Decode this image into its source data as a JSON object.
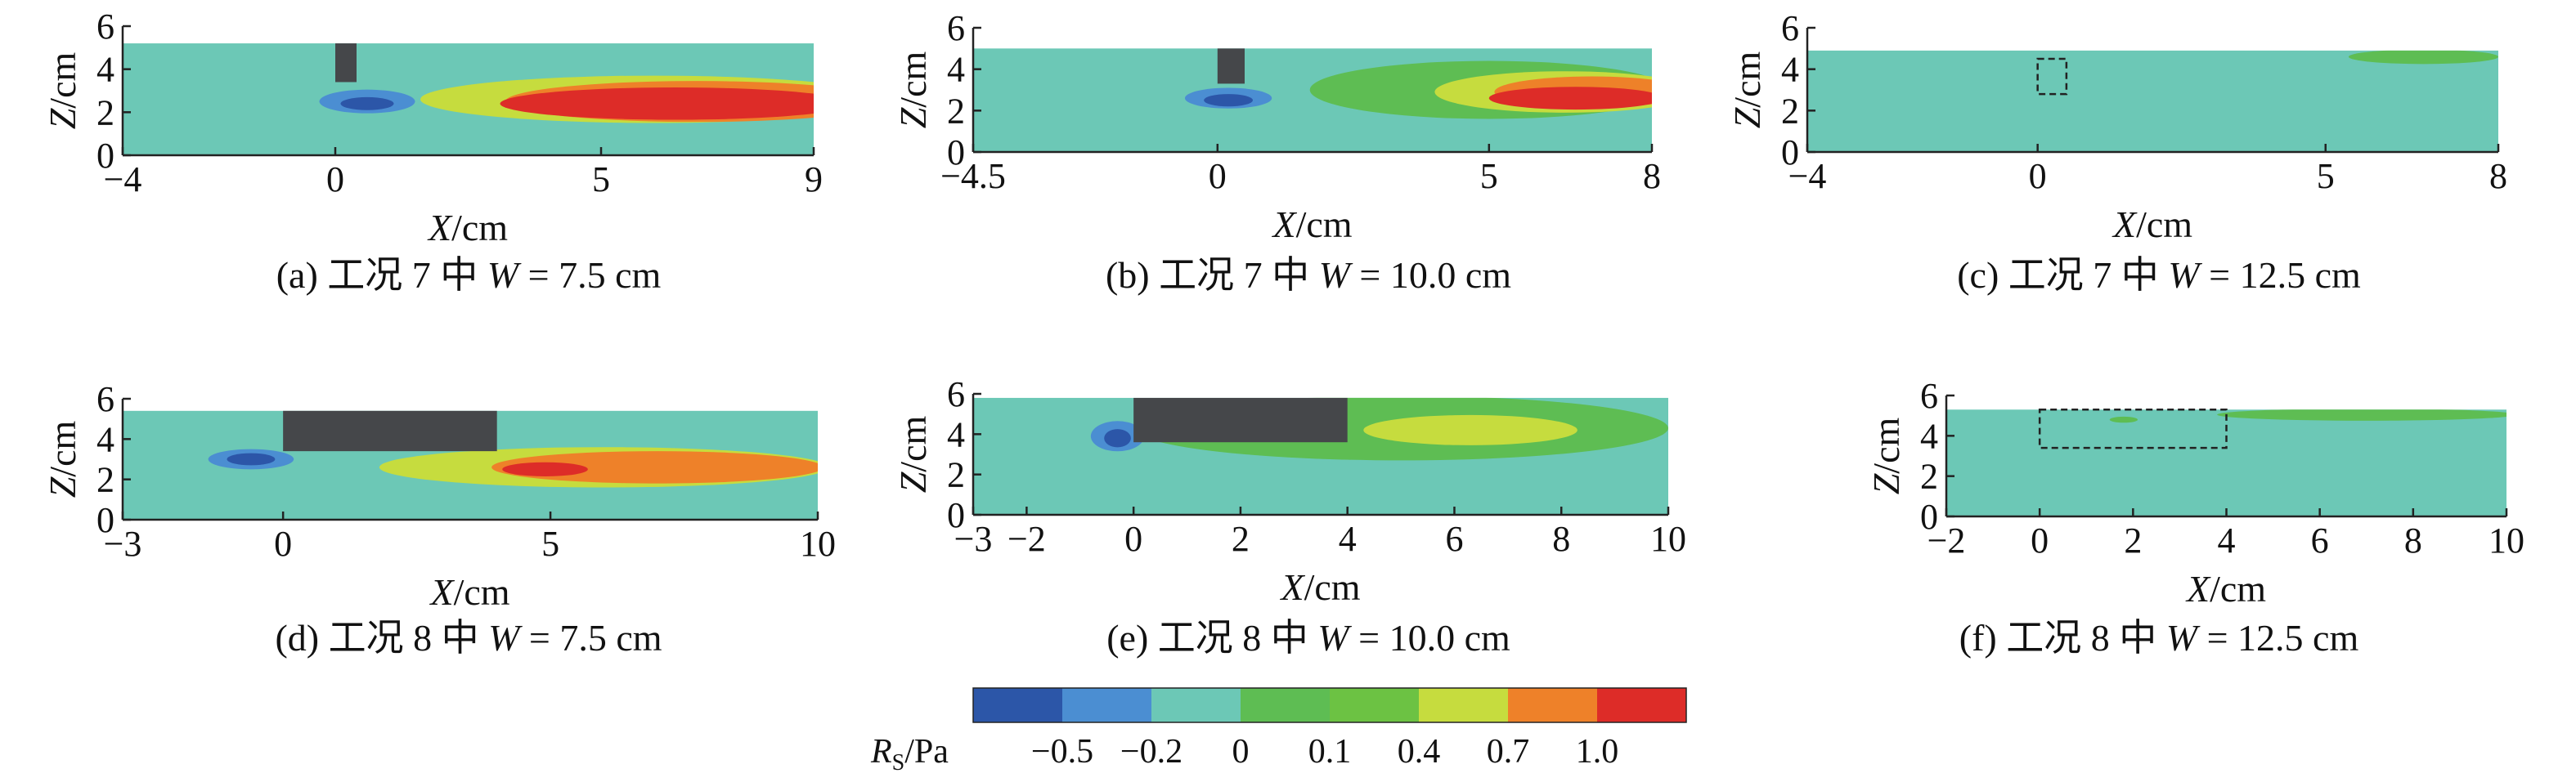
{
  "chart_data": {
    "type": "heatmap",
    "panels": [
      {
        "id": "a",
        "caption": "(a) 工况 7 中 W = 7.5 cm",
        "xlabel": "X/cm",
        "ylabel": "Z/cm",
        "xlim": [
          -4,
          9
        ],
        "ylim": [
          0,
          6
        ],
        "xticks": [
          -4,
          0,
          5,
          9
        ],
        "yticks": [
          0,
          2,
          4,
          6
        ],
        "top_z": 5.2,
        "obstacle": {
          "x0": 0,
          "x1": 0.4,
          "z0": 3.4,
          "z1": 5.2,
          "style": "solid"
        },
        "features": [
          {
            "level": 0.4,
            "cx": 6.0,
            "cz": 2.6,
            "rx": 4.4,
            "rz": 1.1
          },
          {
            "level": 0.7,
            "cx": 6.8,
            "cz": 2.5,
            "rx": 3.6,
            "rz": 0.95
          },
          {
            "level": 1.0,
            "cx": 6.4,
            "cz": 2.4,
            "rx": 3.3,
            "rz": 0.75
          },
          {
            "level": -0.2,
            "cx": 0.6,
            "cz": 2.5,
            "rx": 0.9,
            "rz": 0.55
          },
          {
            "level": -0.5,
            "cx": 0.6,
            "cz": 2.4,
            "rx": 0.5,
            "rz": 0.3
          }
        ]
      },
      {
        "id": "b",
        "caption": "(b) 工况 7 中 W = 10.0 cm",
        "xlabel": "X/cm",
        "ylabel": "Z/cm",
        "xlim": [
          -4.5,
          8
        ],
        "ylim": [
          0,
          6
        ],
        "xticks": [
          -4.5,
          0,
          5,
          8
        ],
        "yticks": [
          0,
          2,
          4,
          6
        ],
        "top_z": 5.0,
        "obstacle": {
          "x0": 0,
          "x1": 0.5,
          "z0": 3.3,
          "z1": 5.0,
          "style": "solid"
        },
        "features": [
          {
            "level": 0.1,
            "cx": 5.0,
            "cz": 3.0,
            "rx": 3.3,
            "rz": 1.4
          },
          {
            "level": 0.4,
            "cx": 6.4,
            "cz": 2.9,
            "rx": 2.4,
            "rz": 1.0
          },
          {
            "level": 0.7,
            "cx": 6.9,
            "cz": 2.9,
            "rx": 1.8,
            "rz": 0.75
          },
          {
            "level": 1.0,
            "cx": 6.6,
            "cz": 2.6,
            "rx": 1.6,
            "rz": 0.55
          },
          {
            "level": -0.2,
            "cx": 0.2,
            "cz": 2.6,
            "rx": 0.8,
            "rz": 0.5
          },
          {
            "level": -0.5,
            "cx": 0.2,
            "cz": 2.5,
            "rx": 0.45,
            "rz": 0.3
          }
        ]
      },
      {
        "id": "c",
        "caption": "(c) 工况 7 中 W = 12.5 cm",
        "xlabel": "X/cm",
        "ylabel": "Z/cm",
        "xlim": [
          -4,
          8
        ],
        "ylim": [
          0,
          6
        ],
        "xticks": [
          -4,
          0,
          5,
          8
        ],
        "yticks": [
          0,
          2,
          4,
          6
        ],
        "top_z": 4.9,
        "obstacle": {
          "x0": 0,
          "x1": 0.5,
          "z0": 2.8,
          "z1": 4.5,
          "style": "dashed"
        },
        "features": [
          {
            "level": 0.1,
            "cx": 6.7,
            "cz": 4.6,
            "rx": 1.3,
            "rz": 0.35
          }
        ]
      },
      {
        "id": "d",
        "caption": "(d) 工况 8 中 W = 7.5 cm",
        "xlabel": "X/cm",
        "ylabel": "Z/cm",
        "xlim": [
          -3,
          10
        ],
        "ylim": [
          0,
          6
        ],
        "xticks": [
          -3,
          0,
          5,
          10
        ],
        "yticks": [
          0,
          2,
          4,
          6
        ],
        "top_z": 5.4,
        "obstacle": {
          "x0": 0,
          "x1": 4,
          "z0": 3.4,
          "z1": 5.4,
          "style": "solid"
        },
        "features": [
          {
            "level": 0.4,
            "cx": 6.0,
            "cz": 2.6,
            "rx": 4.2,
            "rz": 1.0
          },
          {
            "level": 0.7,
            "cx": 7.0,
            "cz": 2.6,
            "rx": 3.1,
            "rz": 0.8
          },
          {
            "level": 1.0,
            "cx": 4.9,
            "cz": 2.5,
            "rx": 0.8,
            "rz": 0.35
          },
          {
            "level": -0.2,
            "cx": -0.6,
            "cz": 3.0,
            "rx": 0.8,
            "rz": 0.5
          },
          {
            "level": -0.5,
            "cx": -0.6,
            "cz": 3.0,
            "rx": 0.45,
            "rz": 0.3
          }
        ]
      },
      {
        "id": "e",
        "caption": "(e) 工况 8 中 W = 10.0 cm",
        "xlabel": "X/cm",
        "ylabel": "Z/cm",
        "xlim": [
          -3,
          10
        ],
        "ylim": [
          0,
          6
        ],
        "xticks": [
          -3,
          -2,
          0,
          2,
          4,
          6,
          8,
          10
        ],
        "yticks": [
          0,
          2,
          4,
          6
        ],
        "top_z": 5.8,
        "obstacle": {
          "x0": 0,
          "x1": 4,
          "z0": 3.6,
          "z1": 5.8,
          "style": "solid"
        },
        "features": [
          {
            "level": 0.1,
            "cx": 5.0,
            "cz": 4.3,
            "rx": 5.0,
            "rz": 1.6
          },
          {
            "level": 0.4,
            "cx": 6.3,
            "cz": 4.2,
            "rx": 2.0,
            "rz": 0.75
          },
          {
            "level": -0.2,
            "cx": -0.3,
            "cz": 3.9,
            "rx": 0.5,
            "rz": 0.75
          },
          {
            "level": -0.5,
            "cx": -0.3,
            "cz": 3.8,
            "rx": 0.25,
            "rz": 0.45
          }
        ]
      },
      {
        "id": "f",
        "caption": "(f) 工况 8 中 W = 12.5 cm",
        "xlabel": "X/cm",
        "ylabel": "Z/cm",
        "xlim": [
          -2,
          10
        ],
        "ylim": [
          0,
          6
        ],
        "xticks": [
          -2,
          0,
          2,
          4,
          6,
          8,
          10
        ],
        "yticks": [
          0,
          2,
          4,
          6
        ],
        "top_z": 5.3,
        "obstacle": {
          "x0": 0,
          "x1": 4,
          "z0": 3.4,
          "z1": 5.3,
          "style": "dashed"
        },
        "features": [
          {
            "level": 0.1,
            "cx": 7.0,
            "cz": 5.05,
            "rx": 3.2,
            "rz": 0.3
          },
          {
            "level": 0.1,
            "cx": 1.8,
            "cz": 4.8,
            "rx": 0.3,
            "rz": 0.15
          }
        ]
      }
    ],
    "colorbar": {
      "label": "RS/Pa",
      "levels": [
        -0.5,
        -0.2,
        0,
        0.1,
        0.4,
        0.7,
        1.0
      ],
      "tick_labels": [
        "−0.5",
        "−0.2",
        "0",
        "0.1",
        "0.4",
        "0.7",
        "1.0"
      ],
      "colors": [
        "#2c56a8",
        "#4b8ed2",
        "#6cc8b6",
        "#5ebd53",
        "#6cc243",
        "#c6dc3e",
        "#ee8129",
        "#dd2c28"
      ],
      "background_level": 0
    }
  }
}
